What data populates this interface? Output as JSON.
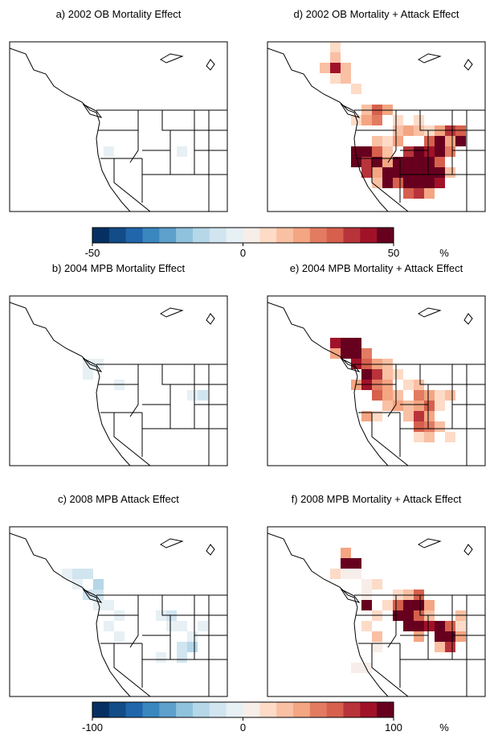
{
  "panels": [
    {
      "title": "a) 2002 OB Mortality Effect",
      "colorbar": 0,
      "cells": [
        [
          9,
          10,
          -5
        ],
        [
          16,
          10,
          -5
        ]
      ]
    },
    {
      "title": "d) 2002 OB Mortality + Attack Effect",
      "colorbar": 0,
      "cells": [
        [
          6,
          0,
          10
        ],
        [
          6,
          1,
          15
        ],
        [
          5,
          2,
          15
        ],
        [
          6,
          2,
          40
        ],
        [
          7,
          2,
          15
        ],
        [
          6,
          3,
          10
        ],
        [
          7,
          3,
          15
        ],
        [
          8,
          4,
          10
        ],
        [
          9,
          6,
          15
        ],
        [
          10,
          6,
          30
        ],
        [
          11,
          6,
          20
        ],
        [
          8,
          7,
          10
        ],
        [
          9,
          7,
          20
        ],
        [
          10,
          7,
          25
        ],
        [
          12,
          7,
          10
        ],
        [
          14,
          7,
          10
        ],
        [
          16,
          8,
          20
        ],
        [
          17,
          8,
          35
        ],
        [
          18,
          8,
          30
        ],
        [
          12,
          8,
          15
        ],
        [
          13,
          8,
          20
        ],
        [
          14,
          8,
          15
        ],
        [
          15,
          8,
          10
        ],
        [
          18,
          9,
          45
        ],
        [
          10,
          9,
          15
        ],
        [
          11,
          9,
          10
        ],
        [
          12,
          9,
          20
        ],
        [
          15,
          9,
          30
        ],
        [
          16,
          9,
          50
        ],
        [
          17,
          9,
          20
        ],
        [
          8,
          10,
          60
        ],
        [
          9,
          10,
          60
        ],
        [
          10,
          10,
          30
        ],
        [
          11,
          10,
          15
        ],
        [
          13,
          10,
          35
        ],
        [
          14,
          10,
          60
        ],
        [
          15,
          10,
          40
        ],
        [
          16,
          10,
          60
        ],
        [
          17,
          10,
          25
        ],
        [
          8,
          11,
          60
        ],
        [
          9,
          11,
          35
        ],
        [
          10,
          11,
          60
        ],
        [
          11,
          11,
          20
        ],
        [
          12,
          11,
          45
        ],
        [
          13,
          11,
          60
        ],
        [
          14,
          11,
          60
        ],
        [
          15,
          11,
          50
        ],
        [
          16,
          11,
          30
        ],
        [
          9,
          12,
          35
        ],
        [
          10,
          12,
          20
        ],
        [
          11,
          12,
          60
        ],
        [
          12,
          12,
          50
        ],
        [
          13,
          12,
          60
        ],
        [
          14,
          12,
          45
        ],
        [
          15,
          12,
          60
        ],
        [
          16,
          12,
          45
        ],
        [
          17,
          12,
          15
        ],
        [
          10,
          13,
          15
        ],
        [
          11,
          13,
          45
        ],
        [
          12,
          13,
          30
        ],
        [
          13,
          13,
          60
        ],
        [
          14,
          13,
          60
        ],
        [
          15,
          13,
          60
        ],
        [
          16,
          13,
          40
        ],
        [
          13,
          14,
          30
        ],
        [
          14,
          14,
          35
        ],
        [
          15,
          14,
          20
        ]
      ]
    },
    {
      "title": "b) 2004 MPB Mortality Effect",
      "colorbar": 0,
      "cells": [
        [
          7,
          6,
          -5
        ],
        [
          8,
          6,
          -5
        ],
        [
          7,
          7,
          -5
        ],
        [
          10,
          8,
          -5
        ],
        [
          17,
          9,
          -5
        ],
        [
          18,
          9,
          -10
        ]
      ]
    },
    {
      "title": "e) 2004 MPB Mortality + Attack Effect",
      "colorbar": 0,
      "cells": [
        [
          6,
          4,
          40
        ],
        [
          7,
          4,
          60
        ],
        [
          8,
          4,
          60
        ],
        [
          6,
          5,
          20
        ],
        [
          7,
          5,
          60
        ],
        [
          8,
          5,
          60
        ],
        [
          9,
          5,
          25
        ],
        [
          8,
          6,
          40
        ],
        [
          9,
          6,
          30
        ],
        [
          10,
          6,
          20
        ],
        [
          11,
          6,
          15
        ],
        [
          9,
          7,
          60
        ],
        [
          10,
          7,
          35
        ],
        [
          11,
          7,
          15
        ],
        [
          12,
          7,
          10
        ],
        [
          8,
          8,
          20
        ],
        [
          9,
          8,
          40
        ],
        [
          10,
          8,
          25
        ],
        [
          11,
          8,
          20
        ],
        [
          13,
          8,
          10
        ],
        [
          14,
          8,
          15
        ],
        [
          10,
          9,
          30
        ],
        [
          11,
          9,
          20
        ],
        [
          12,
          9,
          15
        ],
        [
          14,
          9,
          25
        ],
        [
          15,
          9,
          20
        ],
        [
          16,
          9,
          10
        ],
        [
          17,
          9,
          15
        ],
        [
          11,
          10,
          15
        ],
        [
          12,
          10,
          20
        ],
        [
          13,
          10,
          15
        ],
        [
          14,
          10,
          20
        ],
        [
          15,
          10,
          30
        ],
        [
          16,
          10,
          10
        ],
        [
          10,
          11,
          10
        ],
        [
          13,
          11,
          15
        ],
        [
          14,
          11,
          35
        ],
        [
          15,
          11,
          20
        ],
        [
          14,
          12,
          30
        ],
        [
          15,
          12,
          25
        ],
        [
          16,
          12,
          15
        ],
        [
          14,
          13,
          10
        ],
        [
          15,
          13,
          15
        ],
        [
          17,
          13,
          10
        ],
        [
          9,
          11,
          20
        ]
      ]
    },
    {
      "title": "c) 2008 MPB Attack Effect",
      "colorbar": 1,
      "cells": [
        [
          5,
          4,
          -10
        ],
        [
          6,
          4,
          -20
        ],
        [
          7,
          4,
          -15
        ],
        [
          6,
          5,
          -10
        ],
        [
          8,
          5,
          -30
        ],
        [
          7,
          6,
          -15
        ],
        [
          8,
          6,
          -20
        ],
        [
          9,
          7,
          -10
        ],
        [
          10,
          8,
          -10
        ],
        [
          8,
          7,
          -10
        ],
        [
          14,
          8,
          -10
        ],
        [
          15,
          8,
          -15
        ],
        [
          15,
          9,
          -10
        ],
        [
          16,
          9,
          -5
        ],
        [
          18,
          9,
          -5
        ],
        [
          17,
          10,
          -10
        ],
        [
          16,
          11,
          -20
        ],
        [
          17,
          11,
          -30
        ],
        [
          16,
          12,
          -15
        ],
        [
          10,
          10,
          -10
        ],
        [
          14,
          12,
          -10
        ],
        [
          9,
          9,
          -5
        ]
      ]
    },
    {
      "title": "f) 2008 MPB Mortality + Attack Effect",
      "colorbar": 1,
      "cells": [
        [
          7,
          2,
          40
        ],
        [
          7,
          3,
          100
        ],
        [
          8,
          3,
          100
        ],
        [
          6,
          4,
          15
        ],
        [
          7,
          4,
          10
        ],
        [
          8,
          4,
          5
        ],
        [
          9,
          5,
          10
        ],
        [
          10,
          5,
          15
        ],
        [
          9,
          6,
          10
        ],
        [
          12,
          6,
          15
        ],
        [
          13,
          6,
          30
        ],
        [
          14,
          6,
          60
        ],
        [
          9,
          7,
          100
        ],
        [
          11,
          7,
          20
        ],
        [
          12,
          7,
          60
        ],
        [
          13,
          7,
          100
        ],
        [
          14,
          7,
          100
        ],
        [
          15,
          7,
          40
        ],
        [
          10,
          8,
          20
        ],
        [
          12,
          8,
          100
        ],
        [
          13,
          8,
          100
        ],
        [
          14,
          8,
          60
        ],
        [
          15,
          8,
          30
        ],
        [
          18,
          8,
          30
        ],
        [
          13,
          9,
          100
        ],
        [
          14,
          9,
          100
        ],
        [
          15,
          9,
          80
        ],
        [
          16,
          9,
          100
        ],
        [
          17,
          9,
          60
        ],
        [
          18,
          9,
          20
        ],
        [
          9,
          9,
          15
        ],
        [
          14,
          10,
          40
        ],
        [
          16,
          10,
          100
        ],
        [
          17,
          10,
          100
        ],
        [
          18,
          10,
          40
        ],
        [
          10,
          10,
          30
        ],
        [
          16,
          11,
          30
        ],
        [
          17,
          11,
          70
        ],
        [
          10,
          11,
          10
        ],
        [
          8,
          13,
          5
        ],
        [
          9,
          13,
          10
        ]
      ]
    }
  ],
  "colorbars": [
    {
      "lim": [
        -50,
        50
      ],
      "ticks": [
        -50,
        0,
        50
      ],
      "unit": "%"
    },
    {
      "lim": [
        -100,
        100
      ],
      "ticks": [
        -100,
        0,
        100
      ],
      "unit": "%"
    }
  ],
  "colors": [
    "#053061",
    "#134c87",
    "#2166ac",
    "#3a87bf",
    "#5da0cb",
    "#8fc2dd",
    "#b5d7e8",
    "#d1e5f0",
    "#e7f0f4",
    "#f8eee9",
    "#fddbc7",
    "#f9c0a3",
    "#f4a582",
    "#e27b62",
    "#d6604d",
    "#b8343a",
    "#a11228",
    "#67001f"
  ]
}
